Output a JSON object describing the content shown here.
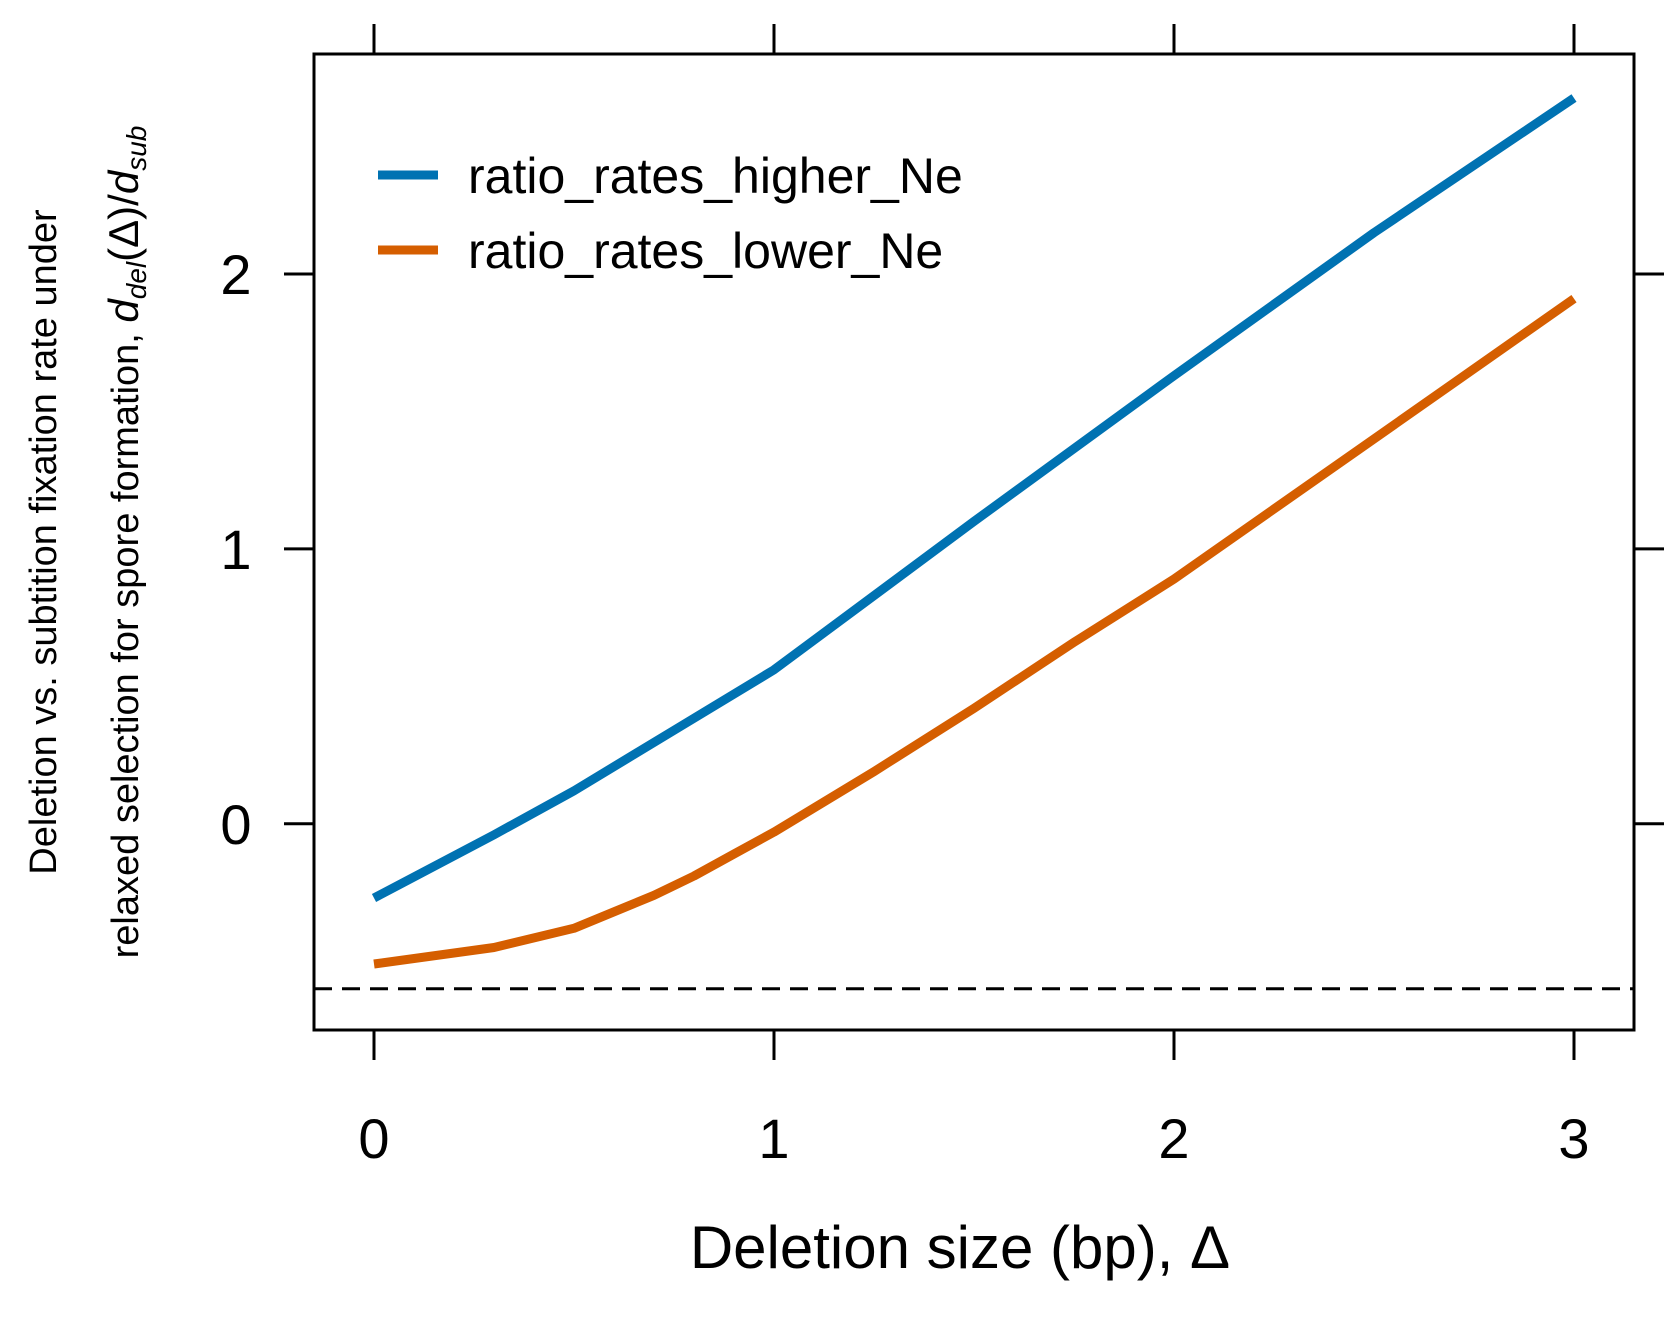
{
  "chart_data": {
    "type": "line",
    "title": "",
    "xlabel": "Deletion size (bp), Δ",
    "ylabel_line1": "Deletion vs. subtition fixation rate under",
    "ylabel_line2": "relaxed selection for spore formation, ",
    "ylabel_math": {
      "d1": "d",
      "sub1": "del",
      "paren": "(Δ)/",
      "d2": "d",
      "sub2": "sub"
    },
    "xlim": [
      -0.15,
      3.15
    ],
    "ylim": [
      -0.75,
      2.8
    ],
    "x_ticks": [
      0,
      1,
      2,
      3
    ],
    "y_ticks": [
      0,
      1,
      2
    ],
    "x_tick_labels": [
      "0",
      "1",
      "2",
      "3"
    ],
    "y_tick_labels": [
      "0",
      "1",
      "2"
    ],
    "reference_line": {
      "y": -0.6,
      "style": "dashed",
      "color": "#000000"
    },
    "grid": false,
    "legend_position": "top-left",
    "series": [
      {
        "name": "ratio_rates_higher_Ne",
        "color": "#0072B2",
        "x": [
          0,
          0.3,
          0.5,
          0.75,
          1.0,
          1.5,
          2.0,
          2.5,
          3.0
        ],
        "y": [
          -0.27,
          -0.04,
          0.12,
          0.34,
          0.56,
          1.1,
          1.63,
          2.15,
          2.64
        ]
      },
      {
        "name": "ratio_rates_lower_Ne",
        "color": "#D55E00",
        "x": [
          0,
          0.3,
          0.5,
          0.6,
          0.7,
          0.8,
          0.9,
          1.0,
          1.25,
          1.5,
          1.75,
          2.0,
          2.5,
          3.0
        ],
        "y": [
          -0.51,
          -0.45,
          -0.38,
          -0.32,
          -0.26,
          -0.19,
          -0.11,
          -0.03,
          0.19,
          0.42,
          0.66,
          0.89,
          1.4,
          1.91
        ]
      }
    ]
  }
}
